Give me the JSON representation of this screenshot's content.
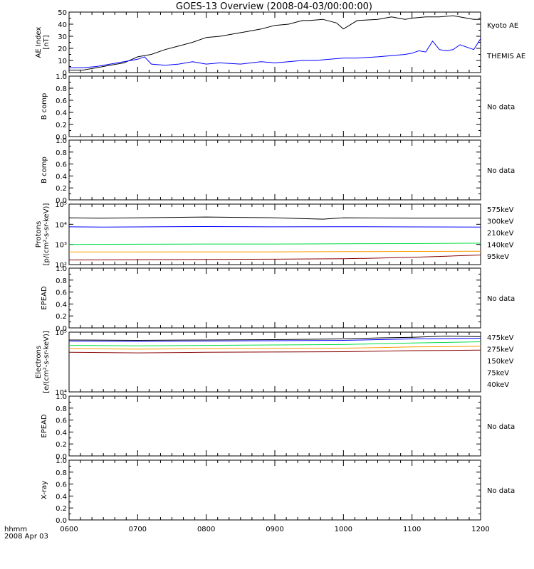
{
  "title": "GOES-13 Overview (2008-04-03/00:00:00)",
  "time_axis": {
    "ticks": [
      "0600",
      "0700",
      "0800",
      "0900",
      "1000",
      "1100",
      "1200"
    ],
    "corner_label_1": "hhmm",
    "corner_label_2": "2008 Apr 03"
  },
  "chart_data": [
    {
      "type": "line",
      "ylabel_1": "AE Index",
      "ylabel_2": "[nT]",
      "xlim": [
        6.0,
        12.0
      ],
      "ylim": [
        0,
        50
      ],
      "yticks": [
        "0",
        "10",
        "20",
        "30",
        "40",
        "50"
      ],
      "series": [
        {
          "name": "Kyoto AE",
          "color": "#000000",
          "x": [
            6.0,
            6.2,
            6.4,
            6.6,
            6.8,
            7.0,
            7.2,
            7.4,
            7.6,
            7.8,
            8.0,
            8.2,
            8.4,
            8.6,
            8.8,
            9.0,
            9.2,
            9.4,
            9.5,
            9.7,
            9.9,
            10.0,
            10.2,
            10.5,
            10.7,
            10.9,
            11.0,
            11.2,
            11.4,
            11.6,
            11.8,
            11.9,
            12.0
          ],
          "y": [
            2,
            2,
            4,
            6,
            8,
            13,
            15,
            19,
            22,
            25,
            29,
            30,
            32,
            34,
            36,
            39,
            40,
            43,
            43,
            44,
            41,
            36,
            43,
            44,
            46,
            44,
            45,
            46,
            46,
            47,
            45,
            44,
            44
          ]
        },
        {
          "name": "THEMIS AE",
          "color": "#0000ff",
          "x": [
            6.0,
            6.2,
            6.4,
            6.6,
            6.8,
            7.0,
            7.1,
            7.2,
            7.4,
            7.6,
            7.8,
            8.0,
            8.2,
            8.5,
            8.8,
            9.0,
            9.2,
            9.4,
            9.6,
            9.8,
            10.0,
            10.2,
            10.5,
            10.7,
            10.9,
            11.0,
            11.1,
            11.2,
            11.3,
            11.4,
            11.5,
            11.6,
            11.7,
            11.8,
            11.9,
            12.0
          ],
          "y": [
            4,
            4,
            5,
            7,
            9,
            11,
            13,
            7,
            6,
            7,
            9,
            7,
            8,
            7,
            9,
            8,
            9,
            10,
            10,
            11,
            12,
            12,
            13,
            14,
            15,
            16,
            18,
            17,
            26,
            19,
            18,
            19,
            23,
            21,
            19,
            28
          ]
        }
      ]
    },
    {
      "type": "line",
      "ylabel_1": "B comp",
      "ylim": [
        0.0,
        1.0
      ],
      "yticks": [
        "0.0",
        "0.2",
        "0.4",
        "0.6",
        "0.8",
        "1.0"
      ],
      "no_data_text": "No data",
      "series": []
    },
    {
      "type": "line",
      "ylabel_1": "B comp",
      "ylim": [
        0.0,
        1.0
      ],
      "yticks": [
        "0.0",
        "0.2",
        "0.4",
        "0.6",
        "0.8",
        "1.0"
      ],
      "no_data_text": "No data",
      "series": []
    },
    {
      "type": "line",
      "scale": "log",
      "ylabel_1": "Protons",
      "ylabel_2": "[p/(cm²-s-sr-keV)]",
      "ylim": [
        100,
        100000
      ],
      "yticks": [
        "10²",
        "10³",
        "10⁴",
        "10⁵"
      ],
      "series": [
        {
          "name": "575keV",
          "color": "#880000",
          "x": [
            6.0,
            7.0,
            8.0,
            9.0,
            10.0,
            10.5,
            11.0,
            11.5,
            12.0
          ],
          "y": [
            170,
            175,
            180,
            185,
            195,
            210,
            230,
            260,
            300
          ]
        },
        {
          "name": "300keV",
          "color": "#ff9900",
          "x": [
            6.0,
            7.0,
            8.0,
            9.0,
            10.0,
            11.0,
            12.0
          ],
          "y": [
            420,
            425,
            430,
            430,
            440,
            450,
            460
          ]
        },
        {
          "name": "210keV",
          "color": "#00dd44",
          "x": [
            6.0,
            7.0,
            8.0,
            9.0,
            10.0,
            11.0,
            12.0
          ],
          "y": [
            1000,
            1020,
            1050,
            1050,
            1080,
            1100,
            1150
          ]
        },
        {
          "name": "140keV",
          "color": "#0000ff",
          "x": [
            6.0,
            6.5,
            7.0,
            8.0,
            9.0,
            10.0,
            11.0,
            12.0
          ],
          "y": [
            7500,
            7300,
            7400,
            7700,
            7500,
            7600,
            7400,
            7300
          ]
        },
        {
          "name": "95keV",
          "color": "#000000",
          "x": [
            6.0,
            6.5,
            7.0,
            8.0,
            9.0,
            9.7,
            10.0,
            11.0,
            12.0
          ],
          "y": [
            21000,
            20000,
            21000,
            23000,
            21000,
            18000,
            21000,
            20000,
            20000
          ]
        }
      ]
    },
    {
      "type": "line",
      "ylabel_1": "EPEAD",
      "ylim": [
        0.0,
        1.0
      ],
      "yticks": [
        "0.0",
        "0.2",
        "0.4",
        "0.6",
        "0.8",
        "1.0"
      ],
      "no_data_text": "No data",
      "series": []
    },
    {
      "type": "line",
      "scale": "log",
      "ylabel_1": "Electrons",
      "ylabel_2": "[e/(cm²-s-sr-keV)]",
      "ylim": [
        10000,
        100000
      ],
      "yticks": [
        "10⁴",
        "10⁵"
      ],
      "series": [
        {
          "name": "475keV",
          "color": "#880000",
          "x": [
            6.0,
            7.0,
            8.0,
            9.0,
            10.0,
            10.5,
            11.0,
            12.0
          ],
          "y": [
            46000,
            45000,
            46000,
            46500,
            47000,
            48000,
            49000,
            50000
          ]
        },
        {
          "name": "275keV",
          "color": "#ff9900",
          "x": [
            6.0,
            7.0,
            8.0,
            9.0,
            10.0,
            10.5,
            11.0,
            12.0
          ],
          "y": [
            53000,
            52000,
            53000,
            53500,
            54000,
            55000,
            56500,
            58000
          ]
        },
        {
          "name": "150keV",
          "color": "#00dd44",
          "x": [
            6.0,
            7.0,
            8.0,
            9.0,
            10.0,
            10.5,
            11.0,
            12.0
          ],
          "y": [
            60000,
            59000,
            60000,
            61000,
            62000,
            64000,
            66000,
            69000
          ]
        },
        {
          "name": "75keV",
          "color": "#0000ff",
          "x": [
            6.0,
            7.0,
            8.0,
            9.0,
            10.0,
            10.5,
            11.0,
            12.0
          ],
          "y": [
            71000,
            70000,
            71000,
            72000,
            73000,
            75000,
            77000,
            79000
          ]
        },
        {
          "name": "40keV",
          "color": "#000000",
          "x": [
            6.0,
            7.0,
            8.0,
            9.0,
            10.0,
            10.5,
            11.0,
            11.5,
            12.0
          ],
          "y": [
            74000,
            73000,
            74000,
            75000,
            77000,
            80000,
            82000,
            86000,
            84000
          ]
        }
      ]
    },
    {
      "type": "line",
      "ylabel_1": "EPEAD",
      "ylim": [
        0.0,
        1.0
      ],
      "yticks": [
        "0.0",
        "0.2",
        "0.4",
        "0.6",
        "0.8",
        "1.0"
      ],
      "no_data_text": "No data",
      "series": []
    },
    {
      "type": "line",
      "ylabel_1": "X-ray",
      "ylim": [
        0.0,
        1.0
      ],
      "yticks": [
        "0.0",
        "0.2",
        "0.4",
        "0.6",
        "0.8",
        "1.0"
      ],
      "no_data_text": "No data",
      "series": []
    }
  ]
}
